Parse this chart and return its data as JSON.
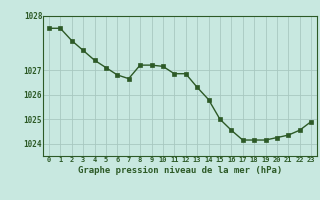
{
  "x": [
    0,
    1,
    2,
    3,
    4,
    5,
    6,
    7,
    8,
    9,
    10,
    11,
    12,
    13,
    14,
    15,
    16,
    17,
    18,
    19,
    20,
    21,
    22,
    23
  ],
  "y": [
    1028.7,
    1028.7,
    1028.2,
    1027.8,
    1027.4,
    1027.1,
    1026.8,
    1026.65,
    1027.2,
    1027.2,
    1027.15,
    1026.85,
    1026.85,
    1026.3,
    1025.8,
    1025.0,
    1024.55,
    1024.15,
    1024.15,
    1024.15,
    1024.25,
    1024.35,
    1024.55,
    1024.9
  ],
  "line_color": "#2d5a27",
  "marker_color": "#2d5a27",
  "bg_color": "#c8e8e0",
  "grid_color": "#a8c8c0",
  "axis_label_color": "#2d5a27",
  "tick_label_color": "#2d5a27",
  "xlabel": "Graphe pression niveau de la mer (hPa)",
  "ylim_min": 1023.5,
  "ylim_max": 1029.2,
  "yticks": [
    1024,
    1025,
    1026,
    1027
  ],
  "ytop_label": "1028",
  "xticks": [
    0,
    1,
    2,
    3,
    4,
    5,
    6,
    7,
    8,
    9,
    10,
    11,
    12,
    13,
    14,
    15,
    16,
    17,
    18,
    19,
    20,
    21,
    22,
    23
  ],
  "xtick_labels": [
    "0",
    "1",
    "2",
    "3",
    "4",
    "5",
    "6",
    "7",
    "8",
    "9",
    "10",
    "11",
    "12",
    "13",
    "14",
    "15",
    "16",
    "17",
    "18",
    "19",
    "20",
    "21",
    "22",
    "23"
  ]
}
